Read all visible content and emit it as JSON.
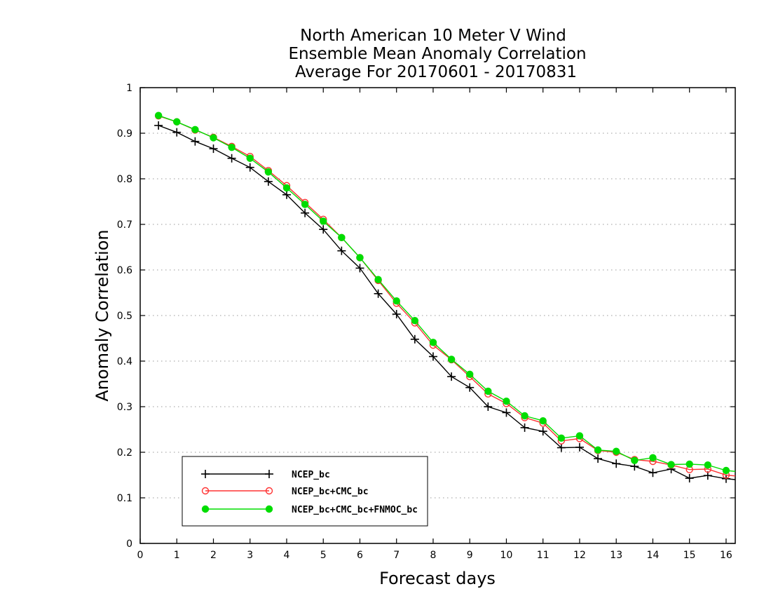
{
  "chart_data": {
    "type": "line",
    "title_lines": [
      "North American 10 Meter V Wind",
      "Ensemble Mean Anomaly Correlation",
      "Average For 20170601 - 20170831"
    ],
    "xlabel": "Forecast days",
    "ylabel": "Anomaly Correlation",
    "xlim": [
      0,
      16.25
    ],
    "ylim": [
      0,
      1
    ],
    "xticks": [
      0,
      1,
      2,
      3,
      4,
      5,
      6,
      7,
      8,
      9,
      10,
      11,
      12,
      13,
      14,
      15,
      16
    ],
    "yticks": [
      0,
      0.1,
      0.2,
      0.3,
      0.4,
      0.5,
      0.6,
      0.7,
      0.8,
      0.9,
      1
    ],
    "ytick_labels": [
      "0",
      "0.1",
      "0.2",
      "0.3",
      "0.4",
      "0.5",
      "0.6",
      "0.7",
      "0.8",
      "0.9",
      "1"
    ],
    "grid": "horizontal dotted",
    "legend_position": "bottom-left",
    "x": [
      0.5,
      1,
      1.5,
      2,
      2.5,
      3,
      3.5,
      4,
      4.5,
      5,
      5.5,
      6,
      6.5,
      7,
      7.5,
      8,
      8.5,
      9,
      9.5,
      10,
      10.5,
      11,
      11.5,
      12,
      12.5,
      13,
      13.5,
      14,
      14.5,
      15,
      15.5,
      16,
      16.25
    ],
    "series": [
      {
        "name": "NCEP_bc",
        "color": "#000000",
        "marker": "plus",
        "values": [
          0.917,
          0.902,
          0.882,
          0.866,
          0.845,
          0.825,
          0.794,
          0.765,
          0.725,
          0.689,
          0.642,
          0.604,
          0.548,
          0.503,
          0.448,
          0.41,
          0.366,
          0.342,
          0.3,
          0.287,
          0.254,
          0.246,
          0.21,
          0.211,
          0.186,
          0.175,
          0.169,
          0.155,
          0.163,
          0.143,
          0.149,
          0.142,
          0.14
        ]
      },
      {
        "name": "NCEP_bc+CMC_bc",
        "color": "#ff3333",
        "marker": "open-circle",
        "values": [
          0.938,
          0.925,
          0.907,
          0.891,
          0.871,
          0.849,
          0.818,
          0.785,
          0.748,
          0.711,
          0.671,
          0.627,
          0.577,
          0.527,
          0.484,
          0.435,
          0.403,
          0.366,
          0.328,
          0.307,
          0.276,
          0.264,
          0.225,
          0.23,
          0.204,
          0.2,
          0.184,
          0.18,
          0.172,
          0.162,
          0.163,
          0.15,
          0.148
        ]
      },
      {
        "name": "NCEP_bc+CMC_bc+FNMOC_bc",
        "color": "#00dd00",
        "marker": "filled-circle",
        "values": [
          0.939,
          0.925,
          0.908,
          0.89,
          0.869,
          0.845,
          0.815,
          0.78,
          0.744,
          0.707,
          0.671,
          0.627,
          0.579,
          0.532,
          0.489,
          0.441,
          0.404,
          0.371,
          0.334,
          0.312,
          0.28,
          0.269,
          0.231,
          0.236,
          0.205,
          0.202,
          0.182,
          0.188,
          0.173,
          0.174,
          0.172,
          0.16,
          0.158
        ]
      }
    ]
  }
}
